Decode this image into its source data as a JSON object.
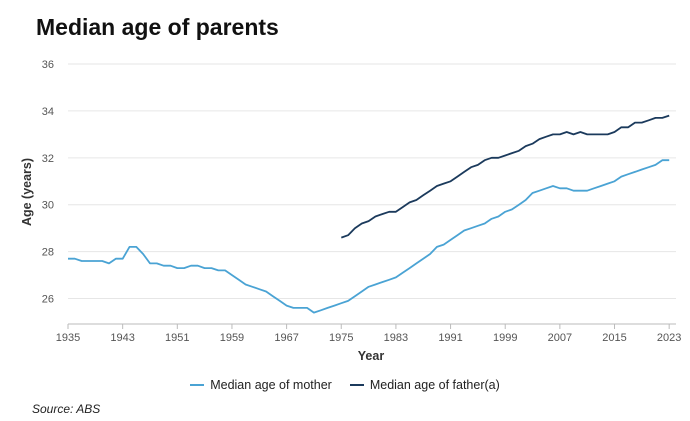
{
  "title": "Median age of parents",
  "source": "Source: ABS",
  "colors": {
    "mother": "#4aa3d4",
    "father": "#1b3a5c",
    "grid": "#e6e6e6",
    "axis": "#bbbbbb"
  },
  "chart_data": {
    "type": "line",
    "title": "Median age of parents",
    "xlabel": "Year",
    "ylabel": "Age (years)",
    "xlim": [
      1935,
      2024
    ],
    "ylim": [
      25,
      36
    ],
    "x_ticks": [
      1935,
      1943,
      1951,
      1959,
      1967,
      1975,
      1983,
      1991,
      1999,
      2007,
      2015,
      2023
    ],
    "y_ticks": [
      26,
      28,
      30,
      32,
      34,
      36
    ],
    "grid": "horizontal",
    "legend_position": "bottom",
    "series": [
      {
        "name": "Median age of mother",
        "color": "#4aa3d4",
        "points": [
          [
            1935,
            27.7
          ],
          [
            1936,
            27.7
          ],
          [
            1937,
            27.6
          ],
          [
            1938,
            27.6
          ],
          [
            1939,
            27.6
          ],
          [
            1940,
            27.6
          ],
          [
            1941,
            27.5
          ],
          [
            1942,
            27.7
          ],
          [
            1943,
            27.7
          ],
          [
            1944,
            28.2
          ],
          [
            1945,
            28.2
          ],
          [
            1946,
            27.9
          ],
          [
            1947,
            27.5
          ],
          [
            1948,
            27.5
          ],
          [
            1949,
            27.4
          ],
          [
            1950,
            27.4
          ],
          [
            1951,
            27.3
          ],
          [
            1952,
            27.3
          ],
          [
            1953,
            27.4
          ],
          [
            1954,
            27.4
          ],
          [
            1955,
            27.3
          ],
          [
            1956,
            27.3
          ],
          [
            1957,
            27.2
          ],
          [
            1958,
            27.2
          ],
          [
            1959,
            27.0
          ],
          [
            1960,
            26.8
          ],
          [
            1961,
            26.6
          ],
          [
            1962,
            26.5
          ],
          [
            1963,
            26.4
          ],
          [
            1964,
            26.3
          ],
          [
            1965,
            26.1
          ],
          [
            1966,
            25.9
          ],
          [
            1967,
            25.7
          ],
          [
            1968,
            25.6
          ],
          [
            1969,
            25.6
          ],
          [
            1970,
            25.6
          ],
          [
            1971,
            25.4
          ],
          [
            1972,
            25.5
          ],
          [
            1973,
            25.6
          ],
          [
            1974,
            25.7
          ],
          [
            1975,
            25.8
          ],
          [
            1976,
            25.9
          ],
          [
            1977,
            26.1
          ],
          [
            1978,
            26.3
          ],
          [
            1979,
            26.5
          ],
          [
            1980,
            26.6
          ],
          [
            1981,
            26.7
          ],
          [
            1982,
            26.8
          ],
          [
            1983,
            26.9
          ],
          [
            1984,
            27.1
          ],
          [
            1985,
            27.3
          ],
          [
            1986,
            27.5
          ],
          [
            1987,
            27.7
          ],
          [
            1988,
            27.9
          ],
          [
            1989,
            28.2
          ],
          [
            1990,
            28.3
          ],
          [
            1991,
            28.5
          ],
          [
            1992,
            28.7
          ],
          [
            1993,
            28.9
          ],
          [
            1994,
            29.0
          ],
          [
            1995,
            29.1
          ],
          [
            1996,
            29.2
          ],
          [
            1997,
            29.4
          ],
          [
            1998,
            29.5
          ],
          [
            1999,
            29.7
          ],
          [
            2000,
            29.8
          ],
          [
            2001,
            30.0
          ],
          [
            2002,
            30.2
          ],
          [
            2003,
            30.5
          ],
          [
            2004,
            30.6
          ],
          [
            2005,
            30.7
          ],
          [
            2006,
            30.8
          ],
          [
            2007,
            30.7
          ],
          [
            2008,
            30.7
          ],
          [
            2009,
            30.6
          ],
          [
            2010,
            30.6
          ],
          [
            2011,
            30.6
          ],
          [
            2012,
            30.7
          ],
          [
            2013,
            30.8
          ],
          [
            2014,
            30.9
          ],
          [
            2015,
            31.0
          ],
          [
            2016,
            31.2
          ],
          [
            2017,
            31.3
          ],
          [
            2018,
            31.4
          ],
          [
            2019,
            31.5
          ],
          [
            2020,
            31.6
          ],
          [
            2021,
            31.7
          ],
          [
            2022,
            31.9
          ],
          [
            2023,
            31.9
          ]
        ]
      },
      {
        "name": "Median age of father(a)",
        "color": "#1b3a5c",
        "points": [
          [
            1975,
            28.6
          ],
          [
            1976,
            28.7
          ],
          [
            1977,
            29.0
          ],
          [
            1978,
            29.2
          ],
          [
            1979,
            29.3
          ],
          [
            1980,
            29.5
          ],
          [
            1981,
            29.6
          ],
          [
            1982,
            29.7
          ],
          [
            1983,
            29.7
          ],
          [
            1984,
            29.9
          ],
          [
            1985,
            30.1
          ],
          [
            1986,
            30.2
          ],
          [
            1987,
            30.4
          ],
          [
            1988,
            30.6
          ],
          [
            1989,
            30.8
          ],
          [
            1990,
            30.9
          ],
          [
            1991,
            31.0
          ],
          [
            1992,
            31.2
          ],
          [
            1993,
            31.4
          ],
          [
            1994,
            31.6
          ],
          [
            1995,
            31.7
          ],
          [
            1996,
            31.9
          ],
          [
            1997,
            32.0
          ],
          [
            1998,
            32.0
          ],
          [
            1999,
            32.1
          ],
          [
            2000,
            32.2
          ],
          [
            2001,
            32.3
          ],
          [
            2002,
            32.5
          ],
          [
            2003,
            32.6
          ],
          [
            2004,
            32.8
          ],
          [
            2005,
            32.9
          ],
          [
            2006,
            33.0
          ],
          [
            2007,
            33.0
          ],
          [
            2008,
            33.1
          ],
          [
            2009,
            33.0
          ],
          [
            2010,
            33.1
          ],
          [
            2011,
            33.0
          ],
          [
            2012,
            33.0
          ],
          [
            2013,
            33.0
          ],
          [
            2014,
            33.0
          ],
          [
            2015,
            33.1
          ],
          [
            2016,
            33.3
          ],
          [
            2017,
            33.3
          ],
          [
            2018,
            33.5
          ],
          [
            2019,
            33.5
          ],
          [
            2020,
            33.6
          ],
          [
            2021,
            33.7
          ],
          [
            2022,
            33.7
          ],
          [
            2023,
            33.8
          ]
        ]
      }
    ]
  }
}
